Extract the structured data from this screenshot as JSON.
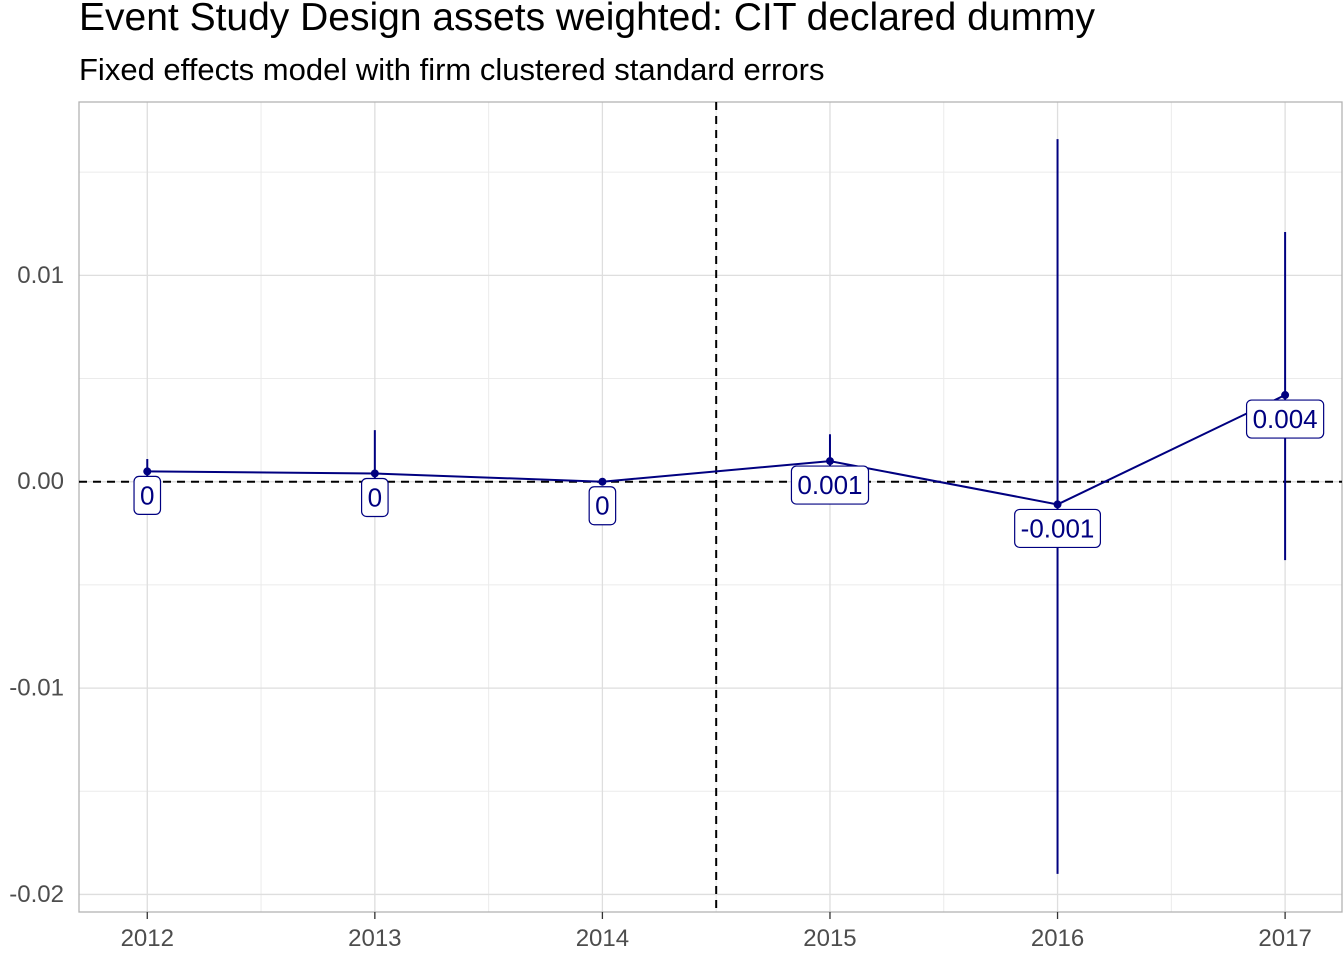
{
  "chart_data": {
    "type": "line",
    "title": "Event Study Design assets weighted: CIT declared dummy",
    "subtitle": "Fixed effects model with firm clustered standard errors",
    "xlabel": "",
    "ylabel": "",
    "x": [
      2012,
      2013,
      2014,
      2015,
      2016,
      2017
    ],
    "x_tick_labels": [
      "2012",
      "2013",
      "2014",
      "2015",
      "2016",
      "2017"
    ],
    "y_tick_values": [
      0.01,
      0.0,
      -0.01,
      -0.02
    ],
    "y_tick_labels": [
      "0.01",
      "0.00",
      "-0.01",
      "-0.02"
    ],
    "xlim": [
      2011.7,
      2017.25
    ],
    "ylim": [
      -0.02085,
      0.0184
    ],
    "series": [
      {
        "values": [
          0.0005,
          0.0004,
          0.0,
          0.001,
          -0.0011,
          0.0042
        ],
        "ci_low": [
          -0.0001,
          -0.0016,
          0.0,
          -0.0001,
          -0.019,
          -0.0038
        ],
        "ci_high": [
          0.0011,
          0.0025,
          0.0,
          0.0023,
          0.0166,
          0.0121
        ],
        "labels": [
          "0",
          "0",
          "0",
          "0.001",
          "-0.001",
          "0.004"
        ],
        "color": "#000080"
      }
    ],
    "reference_lines": {
      "horizontal_y": 0,
      "vertical_x": 2014.5
    },
    "grid": true,
    "legend": "none"
  }
}
